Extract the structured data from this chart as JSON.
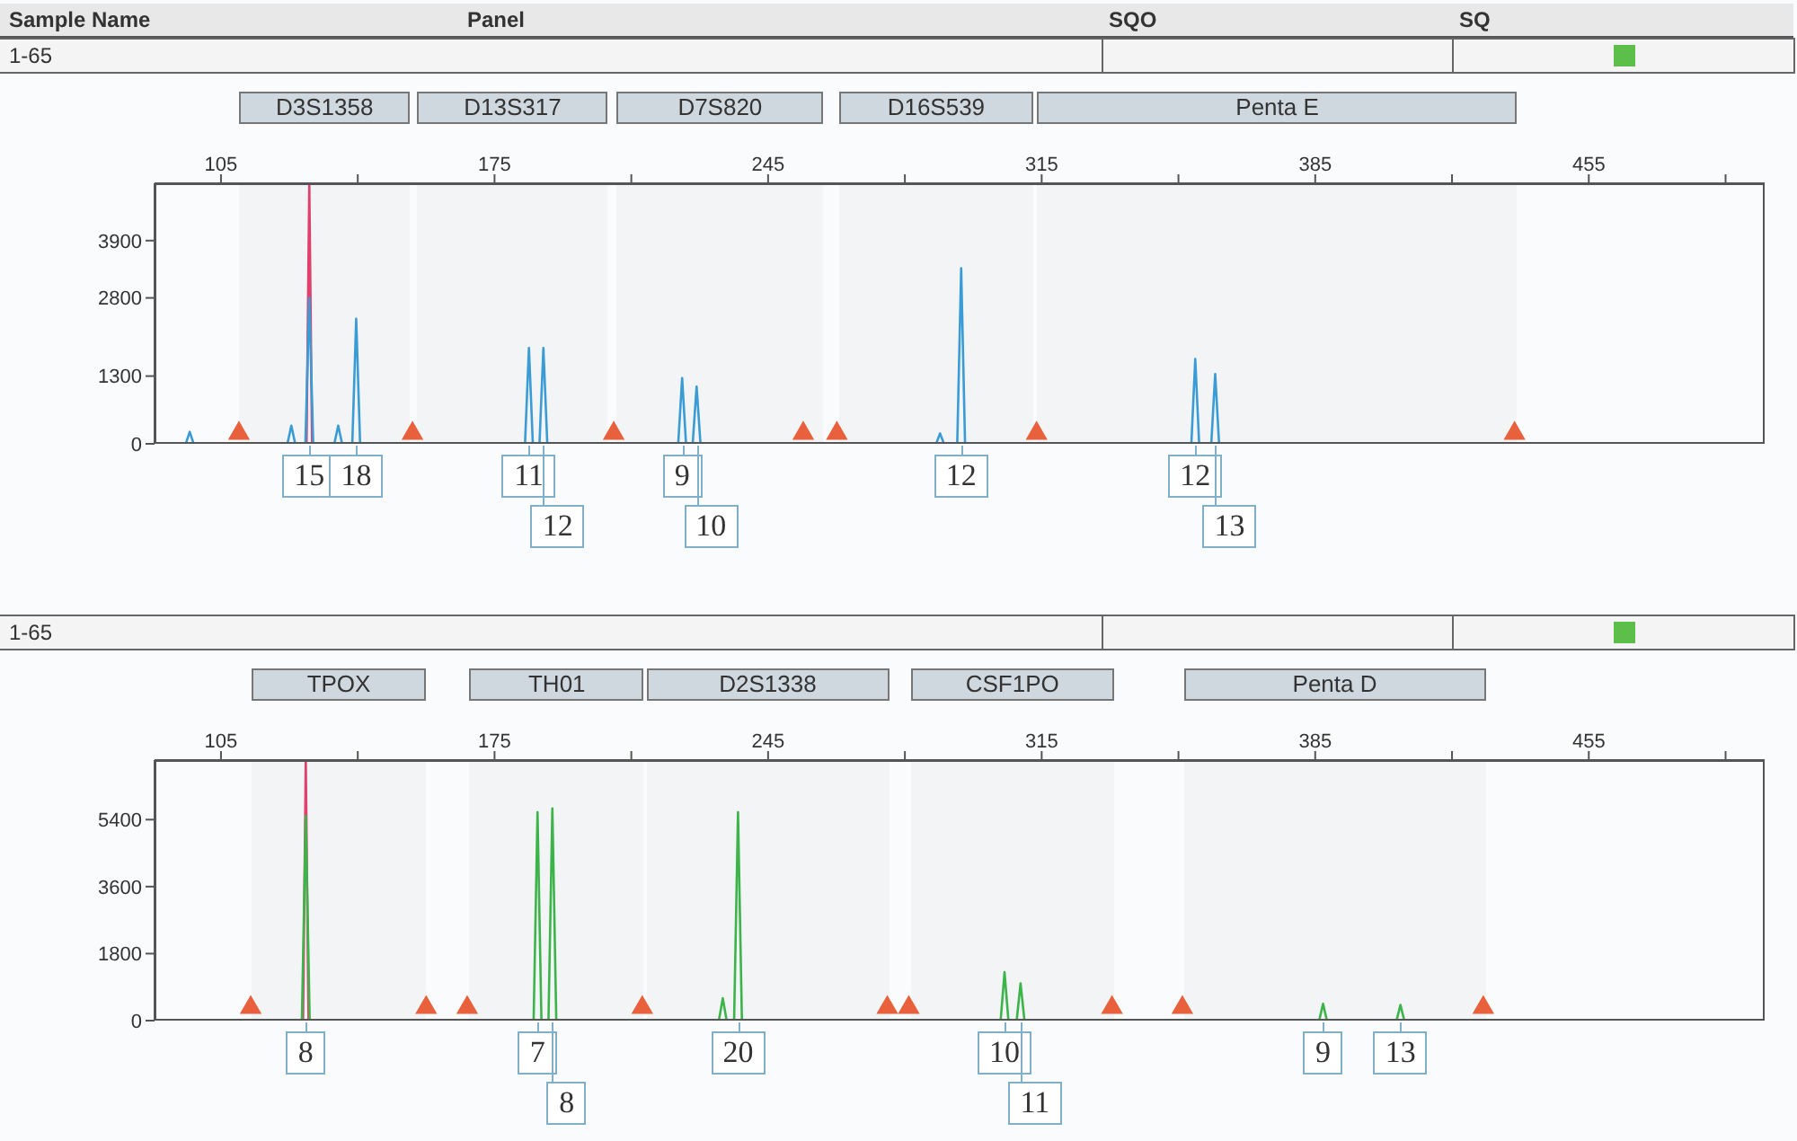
{
  "chart_data": [
    {
      "type": "line",
      "annotations": [
        "Sample Name",
        "Panel",
        "SQO",
        "SQ",
        "1-65",
        {
          "text": "15",
          "x": 127.6,
          "y": 0
        },
        {
          "text": "18",
          "x": 139.6,
          "y": 0
        },
        {
          "text": "11",
          "x": 183.8,
          "y": 0
        },
        {
          "text": "12",
          "x": 187.5,
          "y": 0
        },
        {
          "text": "9",
          "x": 223,
          "y": 0
        },
        {
          "text": "10",
          "x": 226.7,
          "y": 0
        },
        {
          "text": "12",
          "x": 294.4,
          "y": 0
        },
        {
          "text": "12",
          "x": 354.3,
          "y": 0
        },
        {
          "text": "13",
          "x": 359.4,
          "y": 0
        }
      ],
      "bands": [
        {
          "axis": "x",
          "from": 109.6,
          "to": 153.4,
          "label": "D3S1358",
          "color": "#cfd8de"
        },
        {
          "axis": "x",
          "from": 155.2,
          "to": 204,
          "label": "D13S317",
          "color": "#cfd8de"
        },
        {
          "axis": "x",
          "from": 206.4,
          "to": 259,
          "label": "D7S820",
          "color": "#cfd8de"
        },
        {
          "axis": "x",
          "from": 263,
          "to": 313,
          "label": "D16S539",
          "color": "#cfd8de"
        },
        {
          "axis": "x",
          "from": 314,
          "to": 436.6,
          "label": "Penta E",
          "color": "#cfd8de"
        }
      ],
      "xlim": [
        88,
        500
      ],
      "xticks": [
        105,
        {
          "value": 140,
          "label": null
        },
        175,
        {
          "value": 210,
          "label": null
        },
        245,
        {
          "value": 280,
          "label": null
        },
        315,
        {
          "value": 350,
          "label": null
        },
        385,
        {
          "value": 420,
          "label": null
        },
        455,
        {
          "value": 490,
          "label": null
        }
      ],
      "ylim": [
        0,
        5000
      ],
      "yticks": [
        0,
        1300,
        2800,
        3900
      ],
      "grid": false,
      "legend": false,
      "series": [
        {
          "color": "#e0406e",
          "x": [
            126.9,
            127.6,
            128.3
          ],
          "values": [
            0,
            5000,
            0
          ]
        },
        {
          "color": "#3a9bd5",
          "x": [
            96,
            97,
            98,
            122,
            123,
            124,
            126.6,
            127.6,
            128.6,
            134,
            135,
            136,
            138.6,
            139.6,
            140.6,
            182.8,
            183.8,
            184.8,
            186.5,
            187.5,
            188.5,
            222,
            223,
            224,
            225.7,
            226.7,
            227.7,
            288,
            289,
            290,
            293.4,
            294.4,
            295.4,
            353.3,
            354.3,
            355.3,
            358.4,
            359.4,
            360.4
          ],
          "values": [
            0,
            230,
            0,
            0,
            350,
            0,
            0,
            2800,
            0,
            0,
            350,
            0,
            0,
            2400,
            0,
            0,
            1840,
            0,
            0,
            1840,
            0,
            0,
            1260,
            0,
            0,
            1100,
            0,
            0,
            200,
            0,
            0,
            3370,
            0,
            0,
            1630,
            0,
            0,
            1340,
            0
          ]
        },
        {
          "type": "scatter",
          "marker": "triangle",
          "color": "#e8603c",
          "x": [
            109.6,
            154,
            205.5,
            254,
            262.6,
            313.7,
            436
          ],
          "values": [
            200,
            200,
            200,
            200,
            200,
            200,
            200
          ]
        }
      ]
    },
    {
      "type": "line",
      "annotations": [
        "1-65",
        {
          "text": "8",
          "x": 126.7,
          "y": 0
        },
        {
          "text": "7",
          "x": 186,
          "y": 0
        },
        {
          "text": "8",
          "x": 189.8,
          "y": 0
        },
        {
          "text": "20",
          "x": 237.3,
          "y": 0
        },
        {
          "text": "10",
          "x": 305.5,
          "y": 0
        },
        {
          "text": "11",
          "x": 309.6,
          "y": 0
        },
        {
          "text": "9",
          "x": 387,
          "y": 0
        },
        {
          "text": "13",
          "x": 406.8,
          "y": 0
        }
      ],
      "bands": [
        {
          "axis": "x",
          "from": 112.8,
          "to": 157.5,
          "label": "TPOX",
          "color": "#cfd8de"
        },
        {
          "axis": "x",
          "from": 168.6,
          "to": 213.3,
          "label": "TH01",
          "color": "#cfd8de"
        },
        {
          "axis": "x",
          "from": 213.8,
          "to": 276,
          "label": "D2S1338",
          "color": "#cfd8de"
        },
        {
          "axis": "x",
          "from": 281.5,
          "to": 333.5,
          "label": "CSF1PO",
          "color": "#cfd8de"
        },
        {
          "axis": "x",
          "from": 351.5,
          "to": 428.5,
          "label": "Penta D",
          "color": "#cfd8de"
        }
      ],
      "xlim": [
        88,
        500
      ],
      "xticks": [
        105,
        {
          "value": 140,
          "label": null
        },
        175,
        {
          "value": 210,
          "label": null
        },
        245,
        {
          "value": 280,
          "label": null
        },
        315,
        {
          "value": 350,
          "label": null
        },
        385,
        {
          "value": 420,
          "label": null
        },
        455,
        {
          "value": 490,
          "label": null
        }
      ],
      "ylim": [
        0,
        7000
      ],
      "yticks": [
        0,
        1800,
        3600,
        5400
      ],
      "grid": false,
      "legend": false,
      "series": [
        {
          "color": "#e0406e",
          "x": [
            126,
            126.7,
            127.4
          ],
          "values": [
            0,
            7000,
            0
          ]
        },
        {
          "color": "#3cb44a",
          "x": [
            125.7,
            126.7,
            127.7,
            185,
            186,
            187,
            188.8,
            189.8,
            190.8,
            232.4,
            233.4,
            234.4,
            236.3,
            237.3,
            238.3,
            304.5,
            305.5,
            306.5,
            308.6,
            309.6,
            310.6,
            386,
            387,
            388,
            405.8,
            406.8,
            407.8
          ],
          "values": [
            0,
            5500,
            0,
            0,
            5600,
            0,
            0,
            5700,
            0,
            0,
            600,
            0,
            0,
            5600,
            0,
            0,
            1300,
            0,
            0,
            1000,
            0,
            0,
            450,
            0,
            0,
            420,
            0
          ]
        },
        {
          "type": "scatter",
          "marker": "triangle",
          "color": "#e8603c",
          "x": [
            112.6,
            157.5,
            168,
            212.8,
            275.5,
            281,
            333,
            351,
            428
          ],
          "values": [
            350,
            350,
            350,
            350,
            350,
            350,
            350,
            350,
            350
          ]
        }
      ]
    }
  ]
}
